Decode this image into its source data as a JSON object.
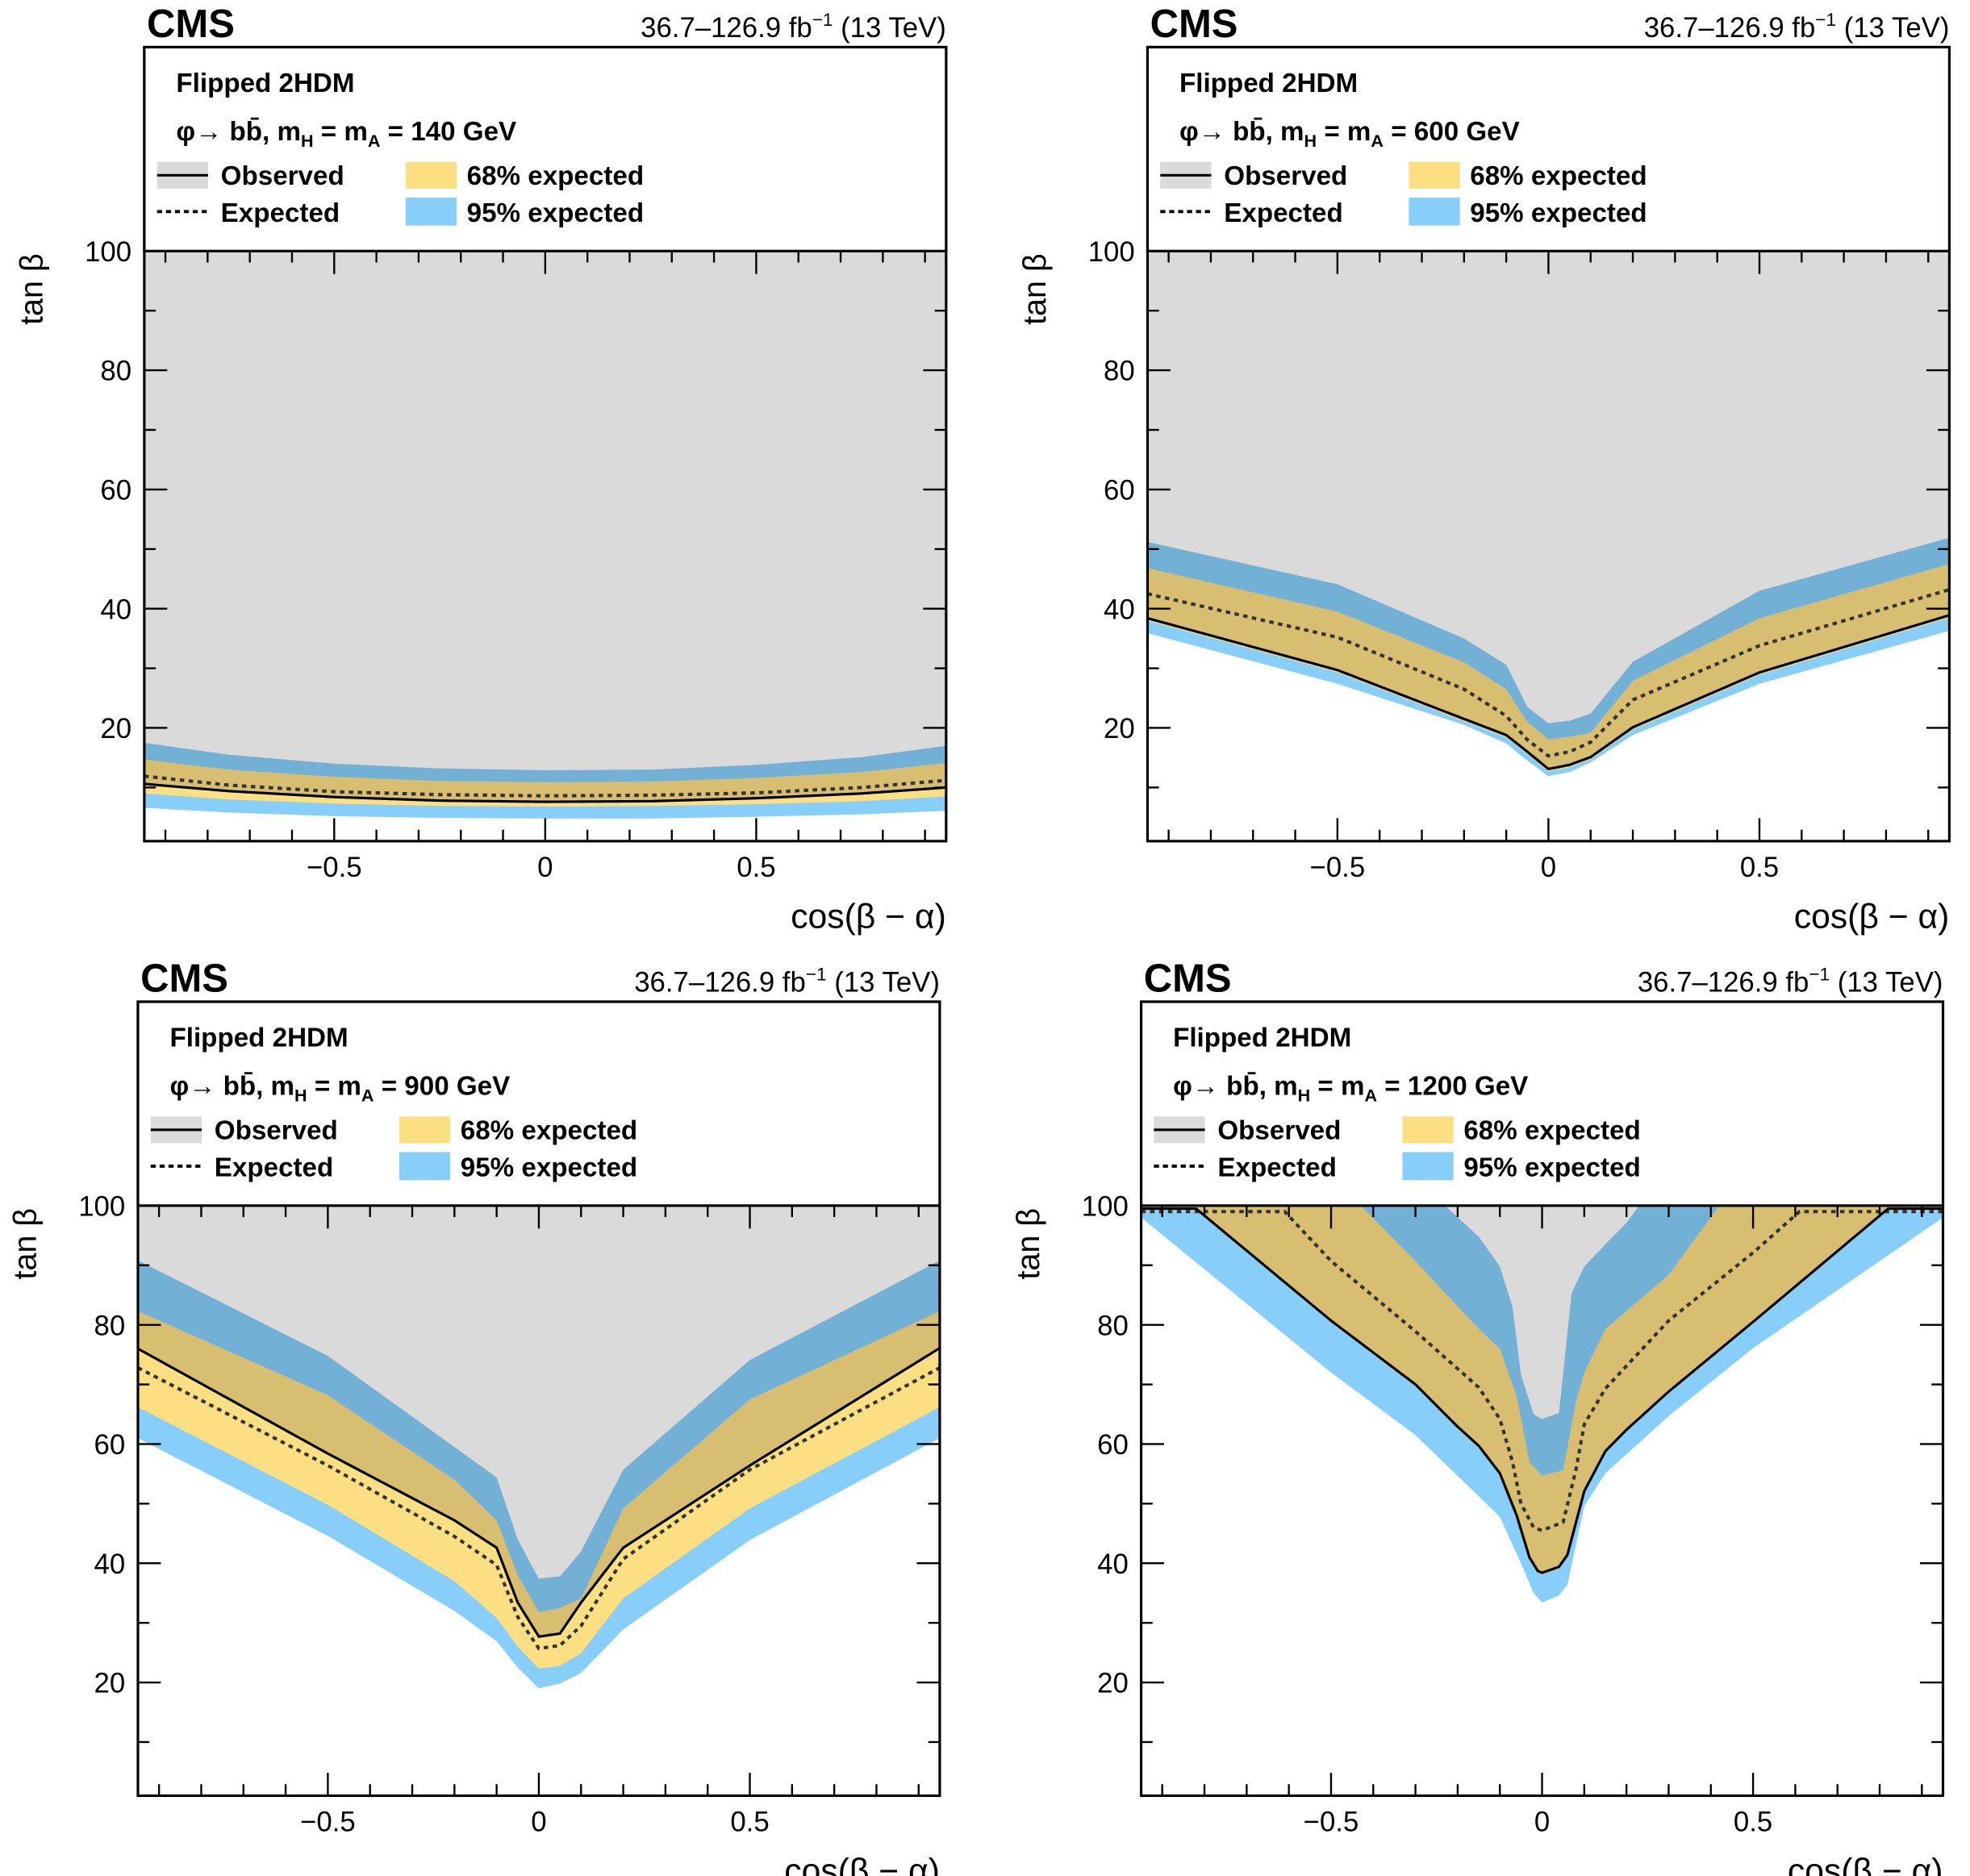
{
  "colors": {
    "observed_region": "#dadada",
    "band68": "#fddf83",
    "band95": "#87cefa",
    "observed_line": "#000000",
    "expected_line": "#333333"
  },
  "common": {
    "experiment": "CMS",
    "lumi": [
      {
        "t": "36.7–126.9 fb"
      },
      {
        "t": "−1",
        "sup": true
      },
      {
        "t": " (13 TeV)"
      }
    ],
    "model": "Flipped 2HDM",
    "legend": {
      "observed": "Observed",
      "expected": "Expected",
      "band68": "68% expected",
      "band95": "95% expected"
    },
    "xlabel": "cos(β − α)",
    "ylabel": "tan β",
    "xticks": [
      "−0.5",
      "0",
      "0.5"
    ],
    "yticks": [
      "20",
      "40",
      "60",
      "80",
      "100"
    ]
  },
  "chart_data": [
    {
      "type": "area",
      "process": [
        {
          "t": "φ→ bb̄, m"
        },
        {
          "t": "H",
          "sub": true
        },
        {
          "t": " = m"
        },
        {
          "t": "A",
          "sub": true
        },
        {
          "t": " = 140 GeV"
        }
      ],
      "xlim": [
        -0.95,
        0.95
      ],
      "ylim": [
        1,
        100
      ],
      "grid": false,
      "legend_placement": "top",
      "observed": [
        [
          -0.95,
          10.6
        ],
        [
          -0.75,
          9.4
        ],
        [
          -0.5,
          8.4
        ],
        [
          -0.25,
          7.8
        ],
        [
          0,
          7.6
        ],
        [
          0.25,
          7.7
        ],
        [
          0.5,
          8.2
        ],
        [
          0.75,
          9.0
        ],
        [
          0.95,
          10.0
        ]
      ],
      "expected": [
        [
          -0.95,
          11.9
        ],
        [
          -0.75,
          10.4
        ],
        [
          -0.5,
          9.3
        ],
        [
          -0.25,
          8.8
        ],
        [
          0,
          8.6
        ],
        [
          0.25,
          8.7
        ],
        [
          0.5,
          9.1
        ],
        [
          0.75,
          10.0
        ],
        [
          0.95,
          11.2
        ]
      ],
      "band68_upper": [
        [
          -0.95,
          14.7
        ],
        [
          -0.75,
          13.0
        ],
        [
          -0.5,
          11.8
        ],
        [
          -0.25,
          11.1
        ],
        [
          0,
          10.9
        ],
        [
          0.25,
          11.0
        ],
        [
          0.5,
          11.6
        ],
        [
          0.75,
          12.6
        ],
        [
          0.95,
          14.1
        ]
      ],
      "band68_lower": [
        [
          -0.95,
          9.0
        ],
        [
          -0.75,
          8.0
        ],
        [
          -0.5,
          7.3
        ],
        [
          -0.25,
          6.9
        ],
        [
          0,
          6.8
        ],
        [
          0.25,
          6.9
        ],
        [
          0.5,
          7.2
        ],
        [
          0.75,
          7.7
        ],
        [
          0.95,
          8.5
        ]
      ],
      "band95_upper": [
        [
          -0.95,
          17.5
        ],
        [
          -0.75,
          15.5
        ],
        [
          -0.5,
          14.0
        ],
        [
          -0.25,
          13.2
        ],
        [
          0,
          12.9
        ],
        [
          0.25,
          13.0
        ],
        [
          0.5,
          13.8
        ],
        [
          0.75,
          15.1
        ],
        [
          0.95,
          17.0
        ]
      ],
      "band95_lower": [
        [
          -0.95,
          6.6
        ],
        [
          -0.75,
          5.8
        ],
        [
          -0.5,
          5.2
        ],
        [
          -0.25,
          4.9
        ],
        [
          0,
          4.8
        ],
        [
          0.25,
          4.8
        ],
        [
          0.5,
          5.1
        ],
        [
          0.75,
          5.5
        ],
        [
          0.95,
          6.1
        ]
      ]
    },
    {
      "type": "area",
      "process": [
        {
          "t": "φ→ bb̄, m"
        },
        {
          "t": "H",
          "sub": true
        },
        {
          "t": " = m"
        },
        {
          "t": "A",
          "sub": true
        },
        {
          "t": " = 600 GeV"
        }
      ],
      "xlim": [
        -0.95,
        0.95
      ],
      "ylim": [
        1,
        100
      ],
      "grid": false,
      "legend_placement": "top",
      "observed": [
        [
          -0.95,
          38.4
        ],
        [
          -0.5,
          29.7
        ],
        [
          -0.2,
          21.5
        ],
        [
          -0.1,
          18.8
        ],
        [
          -0.05,
          16.0
        ],
        [
          0,
          13.1
        ],
        [
          0.05,
          13.8
        ],
        [
          0.1,
          15.1
        ],
        [
          0.2,
          20.1
        ],
        [
          0.5,
          29.3
        ],
        [
          0.95,
          38.9
        ]
      ],
      "expected": [
        [
          -0.95,
          42.5
        ],
        [
          -0.5,
          35.2
        ],
        [
          -0.2,
          26.5
        ],
        [
          -0.1,
          22.0
        ],
        [
          -0.05,
          18.0
        ],
        [
          0,
          15.3
        ],
        [
          0.05,
          16.0
        ],
        [
          0.1,
          17.6
        ],
        [
          0.2,
          24.7
        ],
        [
          0.5,
          33.8
        ],
        [
          0.95,
          43.2
        ]
      ],
      "band68_upper": [
        [
          -0.95,
          46.8
        ],
        [
          -0.5,
          39.5
        ],
        [
          -0.2,
          31.0
        ],
        [
          -0.1,
          26.5
        ],
        [
          -0.05,
          21.0
        ],
        [
          0,
          18.1
        ],
        [
          0.05,
          18.5
        ],
        [
          0.1,
          19.2
        ],
        [
          0.2,
          27.9
        ],
        [
          0.5,
          38.4
        ],
        [
          0.95,
          47.5
        ]
      ],
      "band68_lower": [
        [
          -0.95,
          38.0
        ],
        [
          -0.5,
          29.3
        ],
        [
          -0.2,
          21.1
        ],
        [
          -0.1,
          18.4
        ],
        [
          -0.05,
          15.6
        ],
        [
          0,
          12.7
        ],
        [
          0.05,
          13.4
        ],
        [
          0.1,
          14.7
        ],
        [
          0.2,
          19.7
        ],
        [
          0.5,
          28.9
        ],
        [
          0.95,
          38.5
        ]
      ],
      "band95_upper": [
        [
          -0.95,
          51.2
        ],
        [
          -0.5,
          44.1
        ],
        [
          -0.2,
          35.0
        ],
        [
          -0.1,
          30.6
        ],
        [
          -0.05,
          23.5
        ],
        [
          0,
          20.8
        ],
        [
          0.05,
          21.2
        ],
        [
          0.1,
          22.4
        ],
        [
          0.2,
          31.1
        ],
        [
          0.5,
          43.0
        ],
        [
          0.95,
          51.9
        ]
      ],
      "band95_lower": [
        [
          -0.95,
          35.9
        ],
        [
          -0.5,
          27.4
        ],
        [
          -0.2,
          20.5
        ],
        [
          -0.1,
          17.4
        ],
        [
          -0.05,
          14.5
        ],
        [
          0,
          11.9
        ],
        [
          0.05,
          12.6
        ],
        [
          0.1,
          14.2
        ],
        [
          0.2,
          18.8
        ],
        [
          0.5,
          27.4
        ],
        [
          0.95,
          36.3
        ]
      ]
    },
    {
      "type": "area",
      "process": [
        {
          "t": "φ→ bb̄, m"
        },
        {
          "t": "H",
          "sub": true
        },
        {
          "t": " = m"
        },
        {
          "t": "A",
          "sub": true
        },
        {
          "t": " = 900 GeV"
        }
      ],
      "xlim": [
        -0.95,
        0.95
      ],
      "ylim": [
        1,
        100
      ],
      "grid": false,
      "legend_placement": "top",
      "observed": [
        [
          -0.95,
          76.0
        ],
        [
          -0.5,
          58.4
        ],
        [
          -0.2,
          47.2
        ],
        [
          -0.1,
          42.6
        ],
        [
          -0.05,
          33.4
        ],
        [
          0,
          27.7
        ],
        [
          0.05,
          28.2
        ],
        [
          0.1,
          33.4
        ],
        [
          0.2,
          42.6
        ],
        [
          0.5,
          56.4
        ],
        [
          0.95,
          76.1
        ]
      ],
      "expected": [
        [
          -0.95,
          72.8
        ],
        [
          -0.5,
          56.4
        ],
        [
          -0.2,
          44.5
        ],
        [
          -0.1,
          39.7
        ],
        [
          -0.05,
          31.0
        ],
        [
          0,
          25.7
        ],
        [
          0.05,
          26.2
        ],
        [
          0.1,
          29.5
        ],
        [
          0.2,
          40.7
        ],
        [
          0.5,
          55.7
        ],
        [
          0.95,
          72.8
        ]
      ],
      "band68_upper": [
        [
          -0.95,
          82.3
        ],
        [
          -0.5,
          68.2
        ],
        [
          -0.2,
          54.0
        ],
        [
          -0.1,
          47.2
        ],
        [
          -0.05,
          38.0
        ],
        [
          0,
          31.8
        ],
        [
          0.05,
          32.5
        ],
        [
          0.1,
          34.1
        ],
        [
          0.2,
          49.2
        ],
        [
          0.5,
          67.5
        ],
        [
          0.95,
          82.3
        ]
      ],
      "band68_lower": [
        [
          -0.95,
          66.2
        ],
        [
          -0.5,
          49.8
        ],
        [
          -0.2,
          37.0
        ],
        [
          -0.1,
          30.8
        ],
        [
          -0.05,
          26.0
        ],
        [
          0,
          22.3
        ],
        [
          0.05,
          22.8
        ],
        [
          0.1,
          24.9
        ],
        [
          0.2,
          34.1
        ],
        [
          0.5,
          49.2
        ],
        [
          0.95,
          66.2
        ]
      ],
      "band95_upper": [
        [
          -0.95,
          90.8
        ],
        [
          -0.5,
          74.8
        ],
        [
          -0.2,
          59.5
        ],
        [
          -0.1,
          54.4
        ],
        [
          -0.05,
          44.0
        ],
        [
          0,
          37.4
        ],
        [
          0.05,
          37.8
        ],
        [
          0.1,
          42.0
        ],
        [
          0.2,
          55.7
        ],
        [
          0.5,
          74.1
        ],
        [
          0.95,
          90.8
        ]
      ],
      "band95_lower": [
        [
          -0.95,
          61.0
        ],
        [
          -0.5,
          44.6
        ],
        [
          -0.2,
          32.0
        ],
        [
          -0.1,
          26.9
        ],
        [
          -0.05,
          22.5
        ],
        [
          0,
          19.0
        ],
        [
          0.05,
          19.8
        ],
        [
          0.1,
          21.6
        ],
        [
          0.2,
          28.9
        ],
        [
          0.5,
          43.9
        ],
        [
          0.95,
          61.0
        ]
      ]
    },
    {
      "type": "area",
      "process": [
        {
          "t": "φ→ bb̄, m"
        },
        {
          "t": "H",
          "sub": true
        },
        {
          "t": " = m"
        },
        {
          "t": "A",
          "sub": true
        },
        {
          "t": " = 1200 GeV"
        }
      ],
      "xlim": [
        -0.95,
        0.95
      ],
      "ylim": [
        1,
        100
      ],
      "grid": false,
      "legend_placement": "top",
      "observed": [
        [
          -0.82,
          99.5
        ],
        [
          -0.5,
          80.7
        ],
        [
          -0.3,
          70.0
        ],
        [
          -0.2,
          62.9
        ],
        [
          -0.15,
          59.7
        ],
        [
          -0.1,
          55.1
        ],
        [
          -0.06,
          48.0
        ],
        [
          -0.03,
          41.0
        ],
        [
          -0.01,
          38.7
        ],
        [
          0,
          38.4
        ],
        [
          0.04,
          39.4
        ],
        [
          0.06,
          41.4
        ],
        [
          0.1,
          52.1
        ],
        [
          0.15,
          58.8
        ],
        [
          0.2,
          62.4
        ],
        [
          0.3,
          68.8
        ],
        [
          0.5,
          80.5
        ],
        [
          0.82,
          99.5
        ]
      ],
      "expected": [
        [
          -0.61,
          99.0
        ],
        [
          -0.5,
          90.7
        ],
        [
          -0.3,
          78.9
        ],
        [
          -0.15,
          69.5
        ],
        [
          -0.1,
          64.2
        ],
        [
          -0.07,
          57.0
        ],
        [
          -0.05,
          50.0
        ],
        [
          -0.02,
          46.0
        ],
        [
          0,
          45.5
        ],
        [
          0.05,
          46.9
        ],
        [
          0.08,
          55.6
        ],
        [
          0.1,
          63.3
        ],
        [
          0.15,
          69.3
        ],
        [
          0.3,
          80.7
        ],
        [
          0.5,
          92.1
        ],
        [
          0.61,
          99.0
        ]
      ],
      "band68_upper": [
        [
          -0.43,
          100
        ],
        [
          -0.3,
          90.7
        ],
        [
          -0.15,
          79.3
        ],
        [
          -0.1,
          76.0
        ],
        [
          -0.06,
          68.0
        ],
        [
          -0.03,
          57.0
        ],
        [
          0,
          54.7
        ],
        [
          0.05,
          55.6
        ],
        [
          0.08,
          67.0
        ],
        [
          0.1,
          72.0
        ],
        [
          0.15,
          79.3
        ],
        [
          0.3,
          88.4
        ],
        [
          0.42,
          100
        ]
      ],
      "band68_lower": [
        [
          -0.82,
          99.2
        ],
        [
          -0.5,
          80.4
        ],
        [
          -0.3,
          69.7
        ],
        [
          -0.2,
          62.6
        ],
        [
          -0.15,
          59.4
        ],
        [
          -0.1,
          54.8
        ],
        [
          -0.06,
          47.7
        ],
        [
          -0.03,
          40.7
        ],
        [
          -0.01,
          38.4
        ],
        [
          0,
          38.1
        ],
        [
          0.04,
          39.1
        ],
        [
          0.06,
          41.1
        ],
        [
          0.1,
          51.8
        ],
        [
          0.15,
          58.5
        ],
        [
          0.2,
          62.1
        ],
        [
          0.3,
          68.5
        ],
        [
          0.5,
          80.2
        ],
        [
          0.82,
          99.2
        ]
      ],
      "band95_upper": [
        [
          -0.23,
          100
        ],
        [
          -0.15,
          94.8
        ],
        [
          -0.1,
          89.8
        ],
        [
          -0.07,
          83.0
        ],
        [
          -0.05,
          71.6
        ],
        [
          -0.02,
          65.0
        ],
        [
          0,
          64.2
        ],
        [
          0.04,
          65.2
        ],
        [
          0.07,
          85.3
        ],
        [
          0.1,
          89.8
        ],
        [
          0.15,
          93.5
        ],
        [
          0.2,
          97.1
        ],
        [
          0.23,
          100
        ]
      ],
      "band95_lower": [
        [
          -0.95,
          98.0
        ],
        [
          -0.5,
          72.0
        ],
        [
          -0.3,
          61.5
        ],
        [
          -0.1,
          47.8
        ],
        [
          -0.05,
          40.0
        ],
        [
          -0.02,
          35.0
        ],
        [
          0,
          33.4
        ],
        [
          0.04,
          34.6
        ],
        [
          0.06,
          36.4
        ],
        [
          0.1,
          49.6
        ],
        [
          0.15,
          55.1
        ],
        [
          0.3,
          64.7
        ],
        [
          0.5,
          76.1
        ],
        [
          0.95,
          98.0
        ]
      ]
    }
  ]
}
